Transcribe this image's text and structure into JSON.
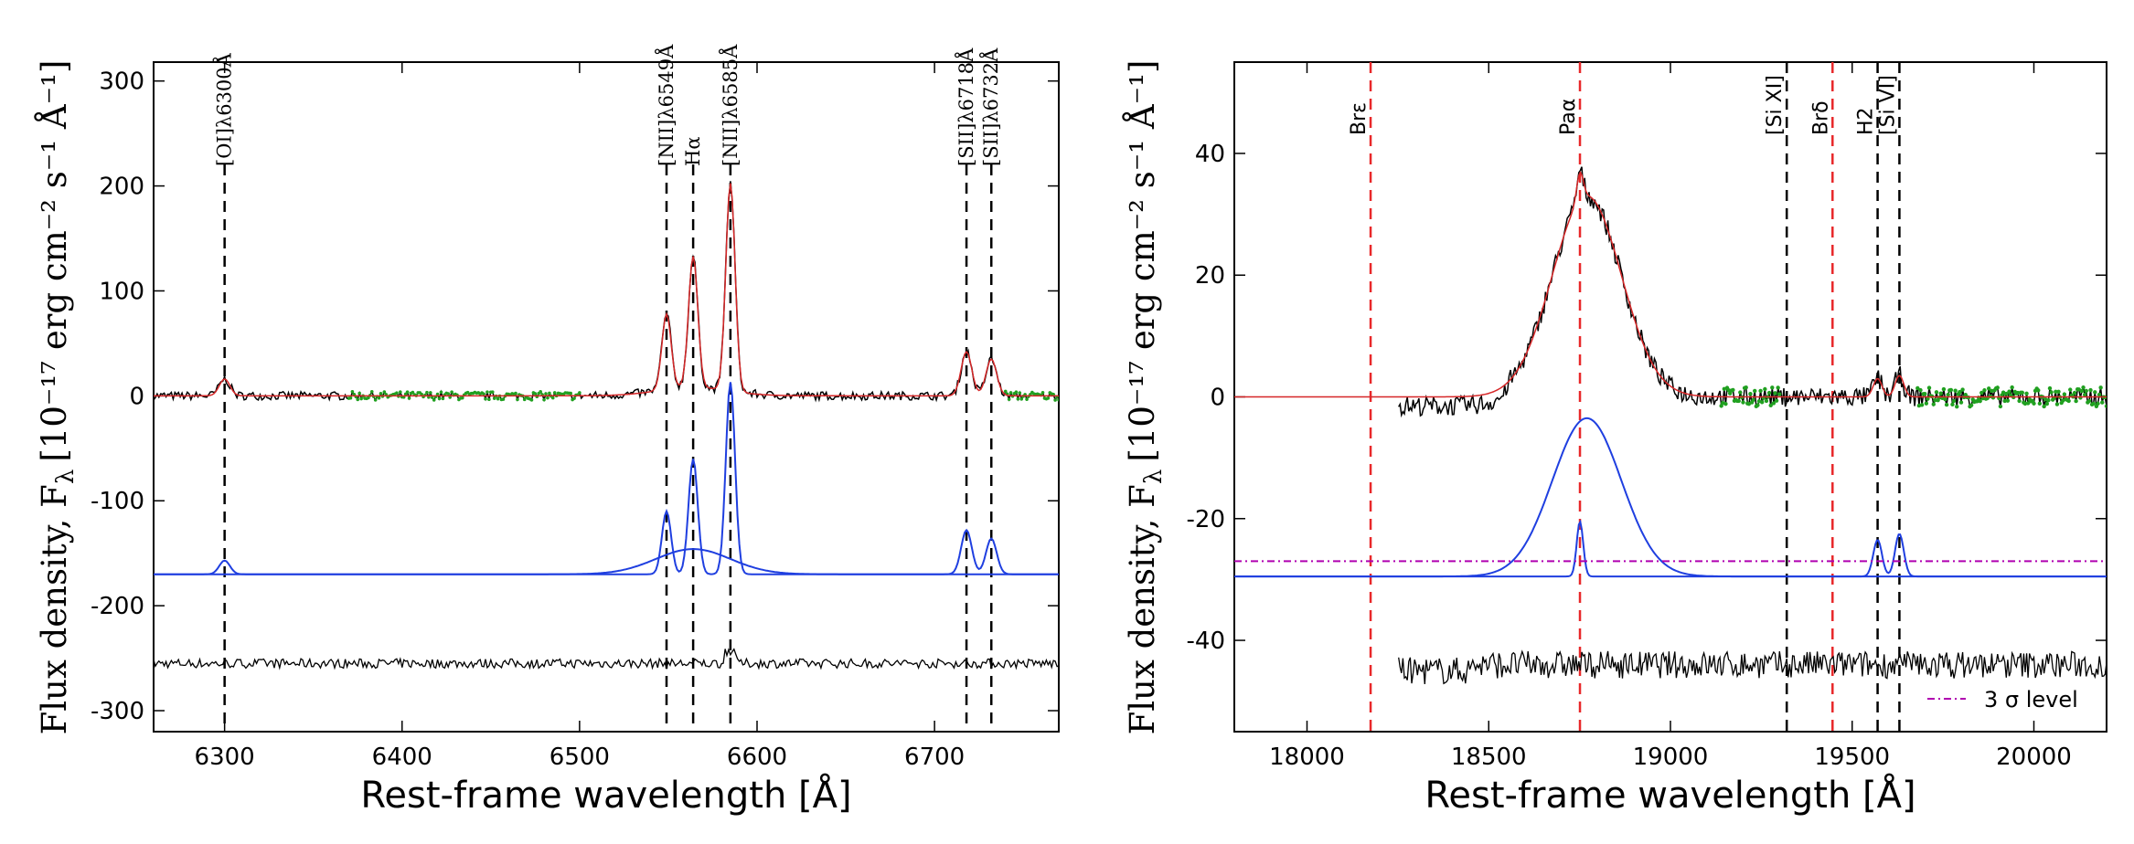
{
  "colors": {
    "data": "#000000",
    "model": "#d62728",
    "component": "#1f3fe0",
    "masked": "#20a020",
    "marker_black": "#000000",
    "marker_red": "#e8282a",
    "sigma": "#b000b0"
  },
  "chart_data": [
    {
      "type": "line",
      "xlabel": "Rest-frame wavelength [Å]",
      "ylabel": "Flux density, F",
      "ylabel_sub": "λ",
      "ylabel_units": "[10⁻¹⁷ erg cm⁻² s⁻¹ Å⁻¹]",
      "xlim": [
        6260,
        6770
      ],
      "ylim": [
        -320,
        318
      ],
      "xticks": [
        6300,
        6400,
        6500,
        6600,
        6700
      ],
      "yticks": [
        -300,
        -200,
        -100,
        0,
        100,
        200,
        300
      ],
      "line_markers": [
        {
          "x": 6300,
          "label": "[OI]λ6300Å"
        },
        {
          "x": 6549,
          "label": "[NII]λ6549Å"
        },
        {
          "x": 6564,
          "label": "Hα"
        },
        {
          "x": 6585,
          "label": "[NII]λ6585Å"
        },
        {
          "x": 6718,
          "label": "[SII]λ6718Å"
        },
        {
          "x": 6732,
          "label": "[SII]λ6732Å"
        }
      ],
      "component_baseline": -170,
      "residual_baseline": -255,
      "emission_lines": [
        {
          "center": 6300,
          "amp": 16,
          "sigma": 3,
          "component_amp": 13
        },
        {
          "center": 6549,
          "amp": 72,
          "sigma": 2.6,
          "component_amp": 60
        },
        {
          "center": 6564,
          "amp": 125,
          "sigma": 2.6,
          "component_amp": 110
        },
        {
          "center": 6585,
          "amp": 198,
          "sigma": 2.6,
          "component_amp": 183
        },
        {
          "center": 6718,
          "amp": 42,
          "sigma": 3,
          "component_amp": 42
        },
        {
          "center": 6732,
          "amp": 35,
          "sigma": 3,
          "component_amp": 34
        }
      ],
      "broad_component": {
        "center": 6564,
        "amp": 24,
        "sigma": 21
      },
      "masked_ranges": [
        [
          6370,
          6500
        ],
        [
          6740,
          6770
        ]
      ]
    },
    {
      "type": "line",
      "xlabel": "Rest-frame wavelength [Å]",
      "ylabel": "Flux density, F",
      "ylabel_sub": "λ",
      "ylabel_units": "[10⁻¹⁷ erg cm⁻² s⁻¹ Å⁻¹]",
      "xlim": [
        17800,
        20200
      ],
      "ylim": [
        -55,
        55
      ],
      "xticks": [
        18000,
        18500,
        19000,
        19500,
        20000
      ],
      "yticks": [
        -40,
        -20,
        0,
        20,
        40
      ],
      "line_markers": [
        {
          "x": 18175,
          "label": "Brε",
          "color": "red"
        },
        {
          "x": 18751,
          "label": "Paα",
          "color": "red"
        },
        {
          "x": 19320,
          "label": "[Si XI]",
          "color": "black"
        },
        {
          "x": 19446,
          "label": "Brδ",
          "color": "red"
        },
        {
          "x": 19570,
          "label": "H2",
          "color": "black"
        },
        {
          "x": 19630,
          "label": "[Si VI]",
          "color": "black"
        }
      ],
      "model_peak": {
        "center": 18770,
        "amp": 33,
        "sigma": 95
      },
      "narrow_lines": [
        {
          "center": 18751,
          "amp": 9,
          "sigma": 9
        },
        {
          "center": 19570,
          "amp": 6,
          "sigma": 12
        },
        {
          "center": 19630,
          "amp": 7,
          "sigma": 12
        }
      ],
      "component_baseline": -29.5,
      "sigma_level": -27,
      "residual_baseline": -44,
      "data_start": 18250,
      "legend": {
        "label": "3 σ level",
        "position": "lower-right"
      },
      "masked_ranges": [
        [
          19140,
          19300
        ],
        [
          19680,
          20200
        ]
      ]
    }
  ]
}
